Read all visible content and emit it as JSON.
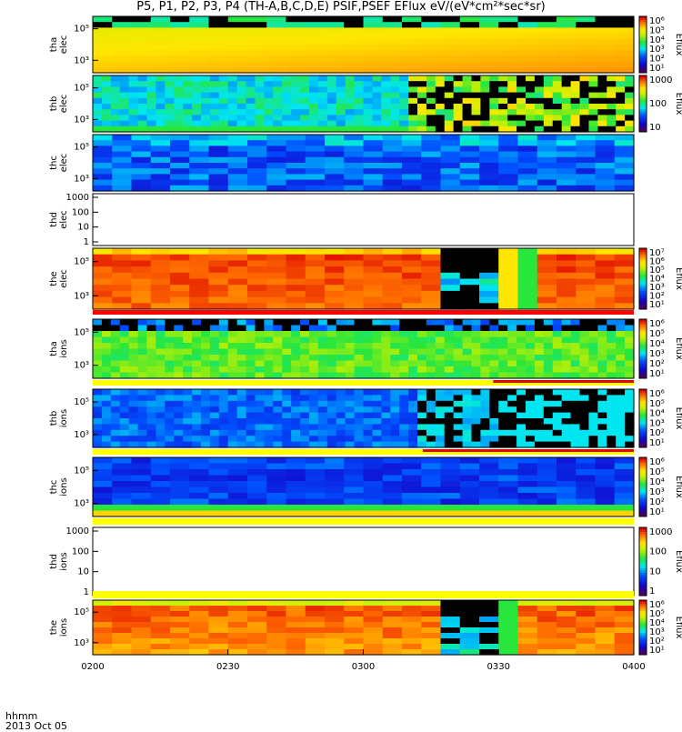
{
  "title": "P5, P1, P2, P3, P4  (TH-A,B,C,D,E) PSIF,PSEF EFlux eV/(eV*cm²*sec*sr)",
  "footer": {
    "xlabel_line1": "hhmm",
    "xlabel_line2": "2013 Oct 05"
  },
  "colors": {
    "frame": "#000000",
    "background": "#ffffff"
  },
  "chart_data": {
    "type": "heatmap",
    "title": "P5, P1, P2, P3, P4  (TH-A,B,C,D,E) PSIF,PSEF EFlux eV/(eV*cm²*sec*sr)",
    "x_ticks": [
      "0200",
      "0230",
      "0300",
      "0330",
      "0400"
    ],
    "x_range": [
      "0200",
      "0400"
    ],
    "colormap": "rainbow (purple-blue-cyan-green-yellow-red)",
    "panels": [
      {
        "id": "tha-elec",
        "label": [
          "tha",
          "elec"
        ],
        "y_ticks": [
          "10⁵",
          "10³"
        ],
        "y_scale": "log",
        "colorbar_ticks": [
          "10⁶",
          "10⁵",
          "10⁴",
          "10³",
          "10²",
          "10¹"
        ],
        "colorbar_label": "Eflux",
        "dominant_level": 0.72,
        "description_level_note": "yellow-orange"
      },
      {
        "id": "thb-elec",
        "label": [
          "thb",
          "elec"
        ],
        "y_ticks": [
          "10⁵",
          "10³"
        ],
        "y_scale": "log",
        "colorbar_ticks": [
          "1000",
          "100",
          "10"
        ],
        "colorbar_label": "Eflux"
      },
      {
        "id": "thc-elec",
        "label": [
          "thc",
          "elec"
        ],
        "y_ticks": [
          "10⁵",
          "10³"
        ],
        "y_scale": "log"
      },
      {
        "id": "thd-elec",
        "label": [
          "thd",
          "elec"
        ],
        "y_ticks": [
          "1000",
          "100",
          "10",
          "1"
        ],
        "y_scale": "log",
        "empty": true
      },
      {
        "id": "the-elec",
        "label": [
          "the",
          "elec"
        ],
        "y_ticks": [
          "10⁵",
          "10³"
        ],
        "y_scale": "log",
        "colorbar_ticks": [
          "10⁷",
          "10⁶",
          "10⁵",
          "10⁴",
          "10³",
          "10²",
          "10¹"
        ],
        "colorbar_label": "Eflux"
      },
      {
        "id": "tha-ions",
        "label": [
          "tha",
          "ions"
        ],
        "y_ticks": [
          "10⁵",
          "10³"
        ],
        "y_scale": "log",
        "colorbar_ticks": [
          "10⁶",
          "10⁵",
          "10⁴",
          "10³",
          "10²",
          "10¹"
        ],
        "colorbar_label": "Eflux"
      },
      {
        "id": "thb-ions",
        "label": [
          "thb",
          "ions"
        ],
        "y_ticks": [
          "10⁵",
          "10³"
        ],
        "y_scale": "log",
        "colorbar_ticks": [
          "10⁶",
          "10⁵",
          "10⁴",
          "10³",
          "10²",
          "10¹"
        ],
        "colorbar_label": "Eflux"
      },
      {
        "id": "thc-ions",
        "label": [
          "thc",
          "ions"
        ],
        "y_ticks": [
          "10⁵",
          "10³"
        ],
        "y_scale": "log",
        "colorbar_ticks": [
          "10⁶",
          "10⁵",
          "10⁴",
          "10³",
          "10²",
          "10¹"
        ],
        "colorbar_label": "Eflux"
      },
      {
        "id": "thd-ions",
        "label": [
          "thd",
          "ions"
        ],
        "y_ticks": [
          "1000",
          "100",
          "10",
          "1"
        ],
        "y_scale": "log",
        "empty": true,
        "colorbar_ticks": [
          "1000",
          "100",
          "10",
          "1"
        ],
        "colorbar_label": "Eflux"
      },
      {
        "id": "the-ions",
        "label": [
          "the",
          "ions"
        ],
        "y_ticks": [
          "10⁵",
          "10³"
        ],
        "y_scale": "log",
        "colorbar_ticks": [
          "10⁶",
          "10⁵",
          "10⁴",
          "10³",
          "10²",
          "10¹"
        ],
        "colorbar_label": "Eflux"
      }
    ]
  }
}
